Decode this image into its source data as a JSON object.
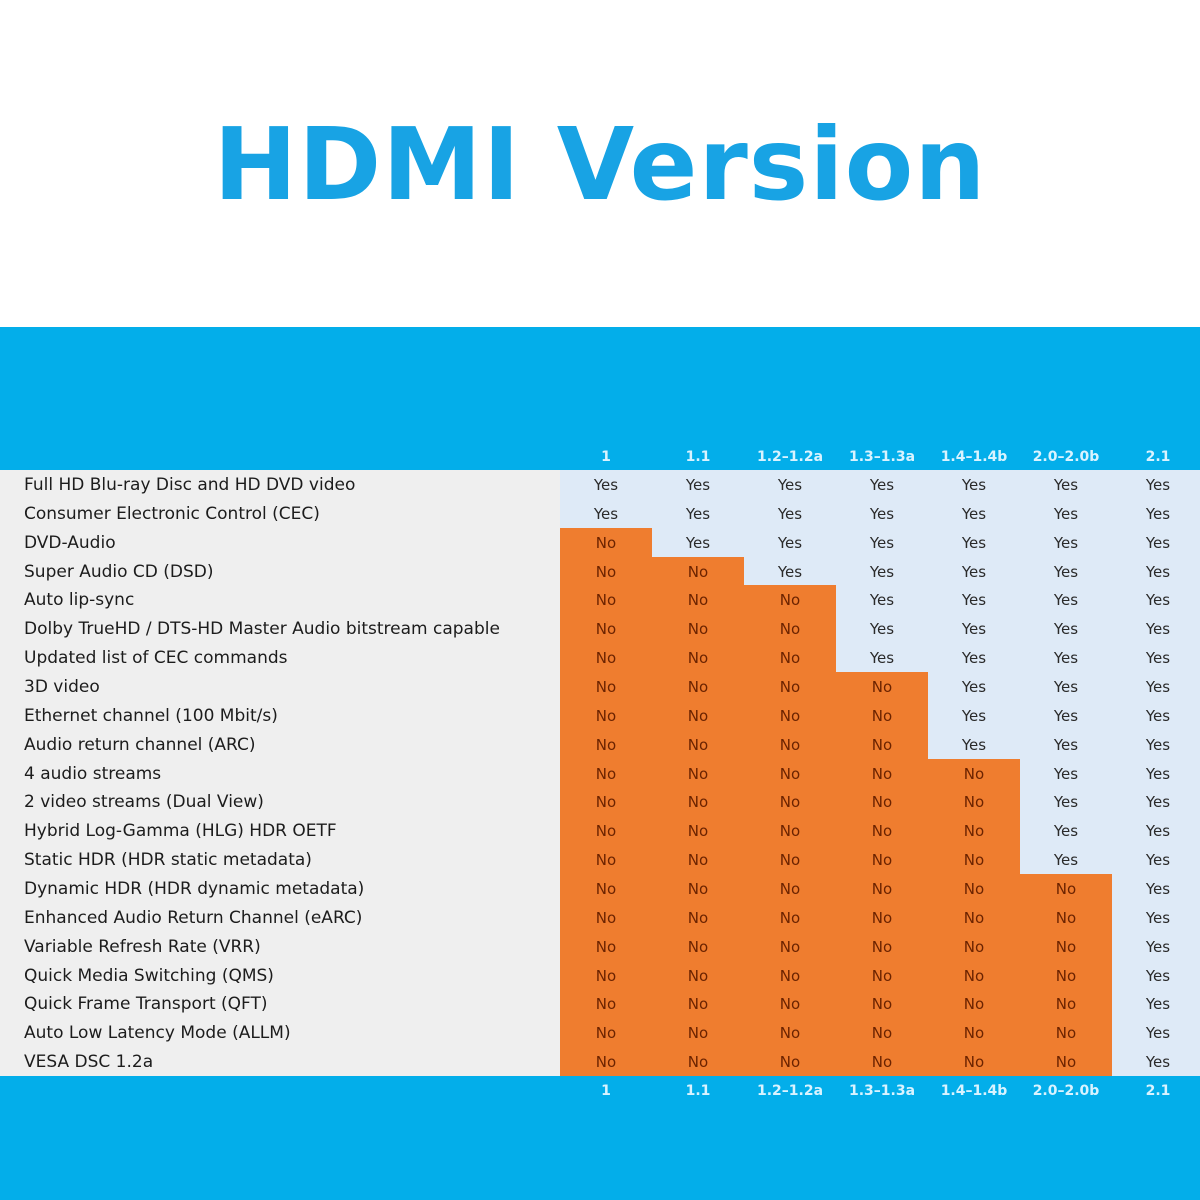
{
  "title": "HDMI Version",
  "versions": [
    "1",
    "1.1",
    "1.2–1.2a",
    "1.3–1.3a",
    "1.4–1.4b",
    "2.0–2.0b",
    "2.1"
  ],
  "colors": {
    "title": "#18a3e4",
    "band": "#03aeea",
    "no_fill": "#ef7d2f",
    "yes_fill": "#deeaf7",
    "label_fill": "#efefef"
  },
  "features": [
    {
      "label": "Full HD Blu-ray Disc and HD DVD video",
      "values": [
        "Yes",
        "Yes",
        "Yes",
        "Yes",
        "Yes",
        "Yes",
        "Yes"
      ]
    },
    {
      "label": "Consumer Electronic Control (CEC)",
      "values": [
        "Yes",
        "Yes",
        "Yes",
        "Yes",
        "Yes",
        "Yes",
        "Yes"
      ]
    },
    {
      "label": "DVD-Audio",
      "values": [
        "No",
        "Yes",
        "Yes",
        "Yes",
        "Yes",
        "Yes",
        "Yes"
      ]
    },
    {
      "label": "Super Audio CD (DSD)",
      "values": [
        "No",
        "No",
        "Yes",
        "Yes",
        "Yes",
        "Yes",
        "Yes"
      ]
    },
    {
      "label": "Auto lip-sync",
      "values": [
        "No",
        "No",
        "No",
        "Yes",
        "Yes",
        "Yes",
        "Yes"
      ]
    },
    {
      "label": "Dolby TrueHD / DTS-HD Master Audio bitstream capable",
      "values": [
        "No",
        "No",
        "No",
        "Yes",
        "Yes",
        "Yes",
        "Yes"
      ]
    },
    {
      "label": "Updated list of CEC commands",
      "values": [
        "No",
        "No",
        "No",
        "Yes",
        "Yes",
        "Yes",
        "Yes"
      ]
    },
    {
      "label": "3D video",
      "values": [
        "No",
        "No",
        "No",
        "No",
        "Yes",
        "Yes",
        "Yes"
      ]
    },
    {
      "label": "Ethernet channel (100 Mbit/s)",
      "values": [
        "No",
        "No",
        "No",
        "No",
        "Yes",
        "Yes",
        "Yes"
      ]
    },
    {
      "label": "Audio return channel (ARC)",
      "values": [
        "No",
        "No",
        "No",
        "No",
        "Yes",
        "Yes",
        "Yes"
      ]
    },
    {
      "label": "4 audio streams",
      "values": [
        "No",
        "No",
        "No",
        "No",
        "No",
        "Yes",
        "Yes"
      ]
    },
    {
      "label": "2 video streams (Dual View)",
      "values": [
        "No",
        "No",
        "No",
        "No",
        "No",
        "Yes",
        "Yes"
      ]
    },
    {
      "label": "Hybrid Log-Gamma (HLG) HDR OETF",
      "values": [
        "No",
        "No",
        "No",
        "No",
        "No",
        "Yes",
        "Yes"
      ]
    },
    {
      "label": "Static HDR (HDR static metadata)",
      "values": [
        "No",
        "No",
        "No",
        "No",
        "No",
        "Yes",
        "Yes"
      ]
    },
    {
      "label": "Dynamic HDR (HDR dynamic metadata)",
      "values": [
        "No",
        "No",
        "No",
        "No",
        "No",
        "No",
        "Yes"
      ]
    },
    {
      "label": "Enhanced Audio Return Channel (eARC)",
      "values": [
        "No",
        "No",
        "No",
        "No",
        "No",
        "No",
        "Yes"
      ]
    },
    {
      "label": "Variable Refresh Rate (VRR)",
      "values": [
        "No",
        "No",
        "No",
        "No",
        "No",
        "No",
        "Yes"
      ]
    },
    {
      "label": "Quick Media Switching (QMS)",
      "values": [
        "No",
        "No",
        "No",
        "No",
        "No",
        "No",
        "Yes"
      ]
    },
    {
      "label": "Quick Frame Transport (QFT)",
      "values": [
        "No",
        "No",
        "No",
        "No",
        "No",
        "No",
        "Yes"
      ]
    },
    {
      "label": "Auto Low Latency Mode (ALLM)",
      "values": [
        "No",
        "No",
        "No",
        "No",
        "No",
        "No",
        "Yes"
      ]
    },
    {
      "label": "VESA DSC 1.2a",
      "values": [
        "No",
        "No",
        "No",
        "No",
        "No",
        "No",
        "Yes"
      ]
    }
  ]
}
